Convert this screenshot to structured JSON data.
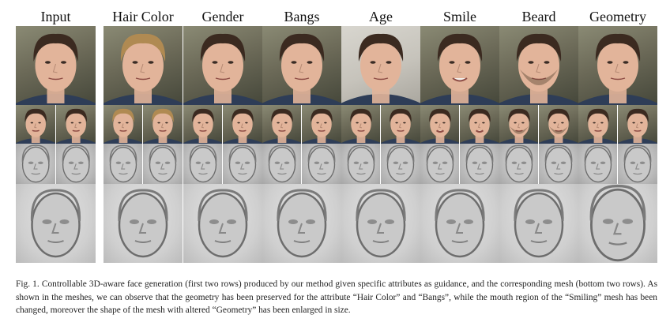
{
  "columns": [
    {
      "label": "Input"
    },
    {
      "label": "Hair Color"
    },
    {
      "label": "Gender"
    },
    {
      "label": "Bangs"
    },
    {
      "label": "Age"
    },
    {
      "label": "Smile"
    },
    {
      "label": "Beard"
    },
    {
      "label": "Geometry"
    }
  ],
  "colors": {
    "skin": "#e2b49a",
    "hair_dark": "#3b2a20",
    "hair_blond": "#b08a52",
    "shirt": "#2e3d57",
    "mesh": "#9a9a9a"
  },
  "caption": {
    "fig_label": "Fig. 1.",
    "text": "Controllable 3D-aware face generation (first two rows) produced by our method given specific attributes as guidance, and the corresponding mesh (bottom two rows). As shown in the meshes, we can observe that the geometry has been preserved for the attribute “Hair Color” and “Bangs”, while the mouth region of the “Smiling” mesh has been changed, moreover the shape of the mesh with altered “Geometry” has been enlarged in size."
  }
}
